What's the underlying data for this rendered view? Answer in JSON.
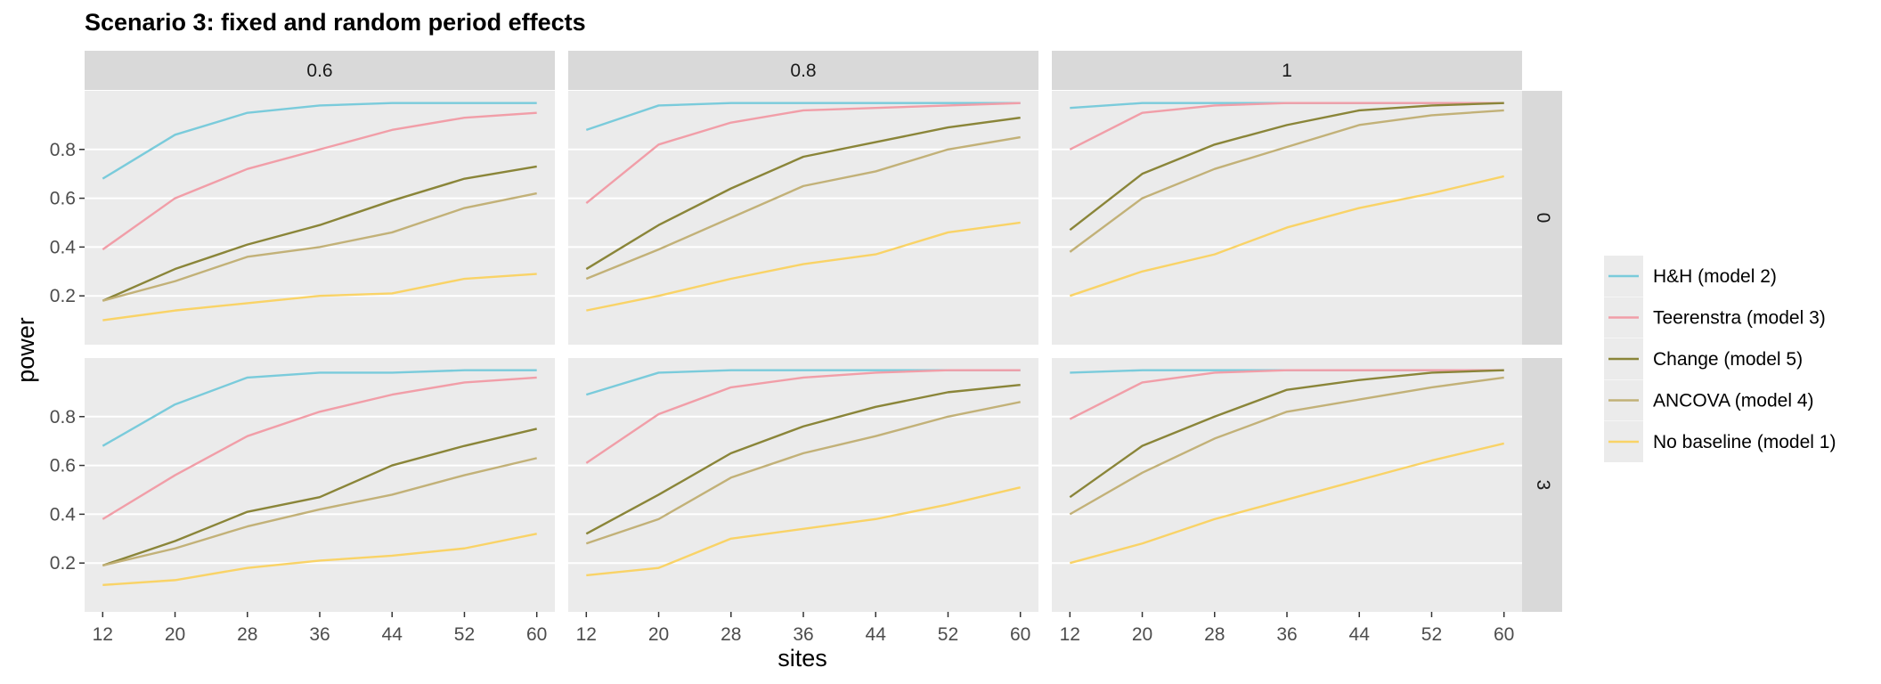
{
  "chart_data": {
    "type": "line",
    "title": "Scenario 3: fixed and random period effects",
    "xlabel": "sites",
    "ylabel": "power",
    "x": [
      12,
      20,
      28,
      36,
      44,
      52,
      60
    ],
    "x_ticks": [
      "12",
      "20",
      "28",
      "36",
      "44",
      "52",
      "60"
    ],
    "y_ticks": [
      "0.2",
      "0.4",
      "0.6",
      "0.8"
    ],
    "y_tick_values": [
      0.2,
      0.4,
      0.6,
      0.8
    ],
    "ylim": [
      0.0,
      1.04
    ],
    "xlim": [
      10,
      62
    ],
    "grid": true,
    "legend_position": "right",
    "col_facets": [
      "0.6",
      "0.8",
      "1"
    ],
    "row_facets": [
      "0",
      "3"
    ],
    "series": [
      {
        "name": "H&H (model 2)",
        "color": "#7ACBDB"
      },
      {
        "name": "Teerenstra (model 3)",
        "color": "#F19EA8"
      },
      {
        "name": "Change (model 5)",
        "color": "#8A8539"
      },
      {
        "name": "ANCOVA (model 4)",
        "color": "#C2B178"
      },
      {
        "name": "No baseline (model 1)",
        "color": "#F9D367"
      }
    ],
    "panels": [
      {
        "row": "0",
        "col": "0.6",
        "values": [
          [
            0.68,
            0.86,
            0.95,
            0.98,
            0.99,
            0.99,
            0.99
          ],
          [
            0.39,
            0.6,
            0.72,
            0.8,
            0.88,
            0.93,
            0.95
          ],
          [
            0.18,
            0.31,
            0.41,
            0.49,
            0.59,
            0.68,
            0.73
          ],
          [
            0.18,
            0.26,
            0.36,
            0.4,
            0.46,
            0.56,
            0.62
          ],
          [
            0.1,
            0.14,
            0.17,
            0.2,
            0.21,
            0.27,
            0.29
          ]
        ]
      },
      {
        "row": "0",
        "col": "0.8",
        "values": [
          [
            0.88,
            0.98,
            0.99,
            0.99,
            0.99,
            0.99,
            0.99
          ],
          [
            0.58,
            0.82,
            0.91,
            0.96,
            0.97,
            0.98,
            0.99
          ],
          [
            0.31,
            0.49,
            0.64,
            0.77,
            0.83,
            0.89,
            0.93
          ],
          [
            0.27,
            0.39,
            0.52,
            0.65,
            0.71,
            0.8,
            0.85
          ],
          [
            0.14,
            0.2,
            0.27,
            0.33,
            0.37,
            0.46,
            0.5
          ]
        ]
      },
      {
        "row": "0",
        "col": "1",
        "values": [
          [
            0.97,
            0.99,
            0.99,
            0.99,
            0.99,
            0.99,
            0.99
          ],
          [
            0.8,
            0.95,
            0.98,
            0.99,
            0.99,
            0.99,
            0.99
          ],
          [
            0.47,
            0.7,
            0.82,
            0.9,
            0.96,
            0.98,
            0.99
          ],
          [
            0.38,
            0.6,
            0.72,
            0.81,
            0.9,
            0.94,
            0.96
          ],
          [
            0.2,
            0.3,
            0.37,
            0.48,
            0.56,
            0.62,
            0.69
          ]
        ]
      },
      {
        "row": "3",
        "col": "0.6",
        "values": [
          [
            0.68,
            0.85,
            0.96,
            0.98,
            0.98,
            0.99,
            0.99
          ],
          [
            0.38,
            0.56,
            0.72,
            0.82,
            0.89,
            0.94,
            0.96
          ],
          [
            0.19,
            0.29,
            0.41,
            0.47,
            0.6,
            0.68,
            0.75
          ],
          [
            0.19,
            0.26,
            0.35,
            0.42,
            0.48,
            0.56,
            0.63
          ],
          [
            0.11,
            0.13,
            0.18,
            0.21,
            0.23,
            0.26,
            0.32
          ]
        ]
      },
      {
        "row": "3",
        "col": "0.8",
        "values": [
          [
            0.89,
            0.98,
            0.99,
            0.99,
            0.99,
            0.99,
            0.99
          ],
          [
            0.61,
            0.81,
            0.92,
            0.96,
            0.98,
            0.99,
            0.99
          ],
          [
            0.32,
            0.48,
            0.65,
            0.76,
            0.84,
            0.9,
            0.93
          ],
          [
            0.28,
            0.38,
            0.55,
            0.65,
            0.72,
            0.8,
            0.86
          ],
          [
            0.15,
            0.18,
            0.3,
            0.34,
            0.38,
            0.44,
            0.51
          ]
        ]
      },
      {
        "row": "3",
        "col": "1",
        "values": [
          [
            0.98,
            0.99,
            0.99,
            0.99,
            0.99,
            0.99,
            0.99
          ],
          [
            0.79,
            0.94,
            0.98,
            0.99,
            0.99,
            0.99,
            0.99
          ],
          [
            0.47,
            0.68,
            0.8,
            0.91,
            0.95,
            0.98,
            0.99
          ],
          [
            0.4,
            0.57,
            0.71,
            0.82,
            0.87,
            0.92,
            0.96
          ],
          [
            0.2,
            0.28,
            0.38,
            0.46,
            0.54,
            0.62,
            0.69
          ]
        ]
      }
    ]
  }
}
